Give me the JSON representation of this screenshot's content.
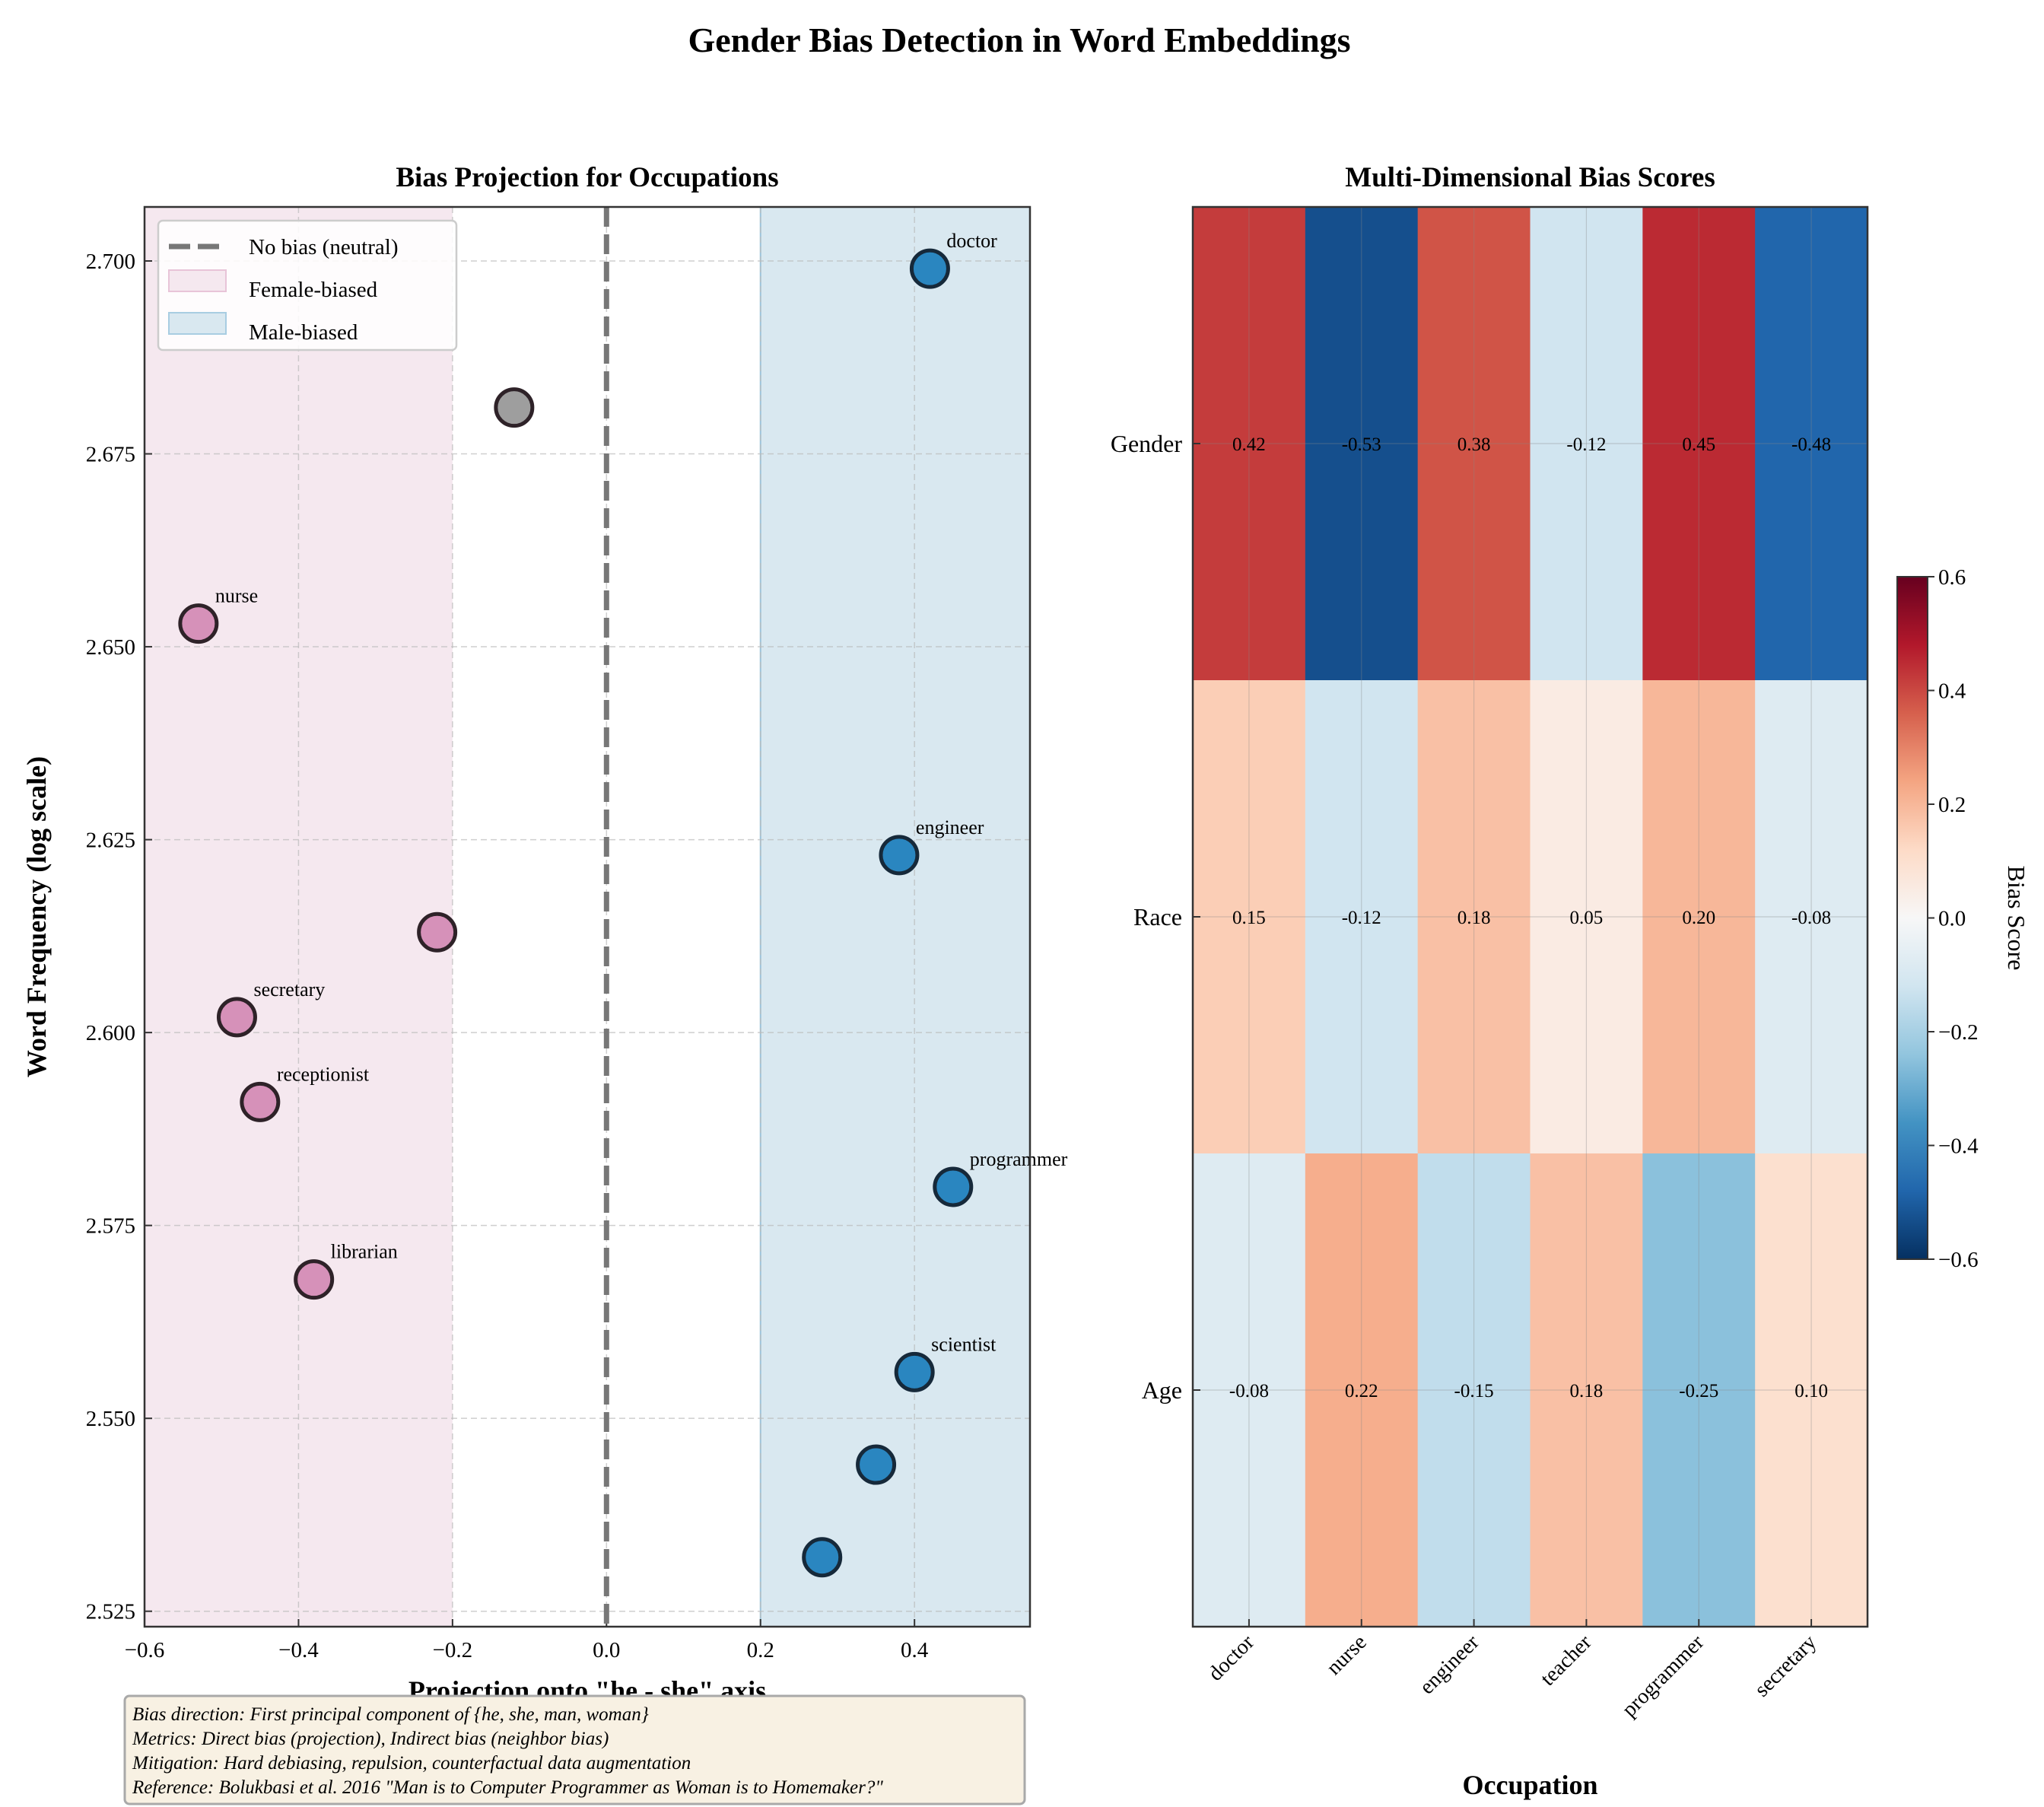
{
  "title": "Gender Bias Detection in Word Embeddings",
  "chart_data": [
    {
      "type": "scatter",
      "title": "Bias Projection for Occupations",
      "xlabel": "Projection onto \"he - she\" axis",
      "ylabel": "Word Frequency (log scale)",
      "xlim": [
        -0.6,
        0.55
      ],
      "ylim": [
        2.523,
        2.707
      ],
      "xticks": [
        "−0.6",
        "−0.4",
        "−0.2",
        "0.0",
        "0.2",
        "0.4"
      ],
      "xtick_values": [
        -0.6,
        -0.4,
        -0.2,
        0.0,
        0.2,
        0.4
      ],
      "yticks": [
        "2.525",
        "2.550",
        "2.575",
        "2.600",
        "2.625",
        "2.650",
        "2.675",
        "2.700"
      ],
      "ytick_values": [
        2.525,
        2.55,
        2.575,
        2.6,
        2.625,
        2.65,
        2.675,
        2.7
      ],
      "grid": true,
      "legend_position": "top-left",
      "legend": [
        "No bias (neutral)",
        "Female-biased",
        "Male-biased"
      ],
      "neutral_line_x": 0.0,
      "female_region": [
        -0.6,
        -0.2
      ],
      "male_region": [
        0.2,
        0.55
      ],
      "colors": {
        "female": "#d48cb5",
        "male": "#2a86c0",
        "neutral": "#999999",
        "female_region": "#f5e8ef",
        "male_region": "#d9e8f0"
      },
      "points": [
        {
          "label": "doctor",
          "x": 0.42,
          "y": 2.699,
          "group": "male"
        },
        {
          "label": "",
          "x": -0.12,
          "y": 2.681,
          "group": "neutral"
        },
        {
          "label": "nurse",
          "x": -0.53,
          "y": 2.653,
          "group": "female"
        },
        {
          "label": "engineer",
          "x": 0.38,
          "y": 2.623,
          "group": "male"
        },
        {
          "label": "",
          "x": -0.22,
          "y": 2.613,
          "group": "female"
        },
        {
          "label": "secretary",
          "x": -0.48,
          "y": 2.602,
          "group": "female"
        },
        {
          "label": "receptionist",
          "x": -0.45,
          "y": 2.591,
          "group": "female"
        },
        {
          "label": "programmer",
          "x": 0.45,
          "y": 2.58,
          "group": "male"
        },
        {
          "label": "librarian",
          "x": -0.38,
          "y": 2.568,
          "group": "female"
        },
        {
          "label": "scientist",
          "x": 0.4,
          "y": 2.556,
          "group": "male"
        },
        {
          "label": "",
          "x": 0.35,
          "y": 2.544,
          "group": "male"
        },
        {
          "label": "",
          "x": 0.28,
          "y": 2.532,
          "group": "male"
        }
      ]
    },
    {
      "type": "heatmap",
      "title": "Multi-Dimensional Bias Scores",
      "xlabel": "Occupation",
      "ylabel": "",
      "columns": [
        "doctor",
        "nurse",
        "engineer",
        "teacher",
        "programmer",
        "secretary"
      ],
      "rows": [
        "Gender",
        "Race",
        "Age"
      ],
      "values": [
        [
          0.42,
          -0.53,
          0.38,
          -0.12,
          0.45,
          -0.48
        ],
        [
          0.15,
          -0.12,
          0.18,
          0.05,
          0.2,
          -0.08
        ],
        [
          -0.08,
          0.22,
          -0.15,
          0.18,
          -0.25,
          0.1
        ]
      ],
      "value_labels": [
        [
          "0.42",
          "-0.53",
          "0.38",
          "-0.12",
          "0.45",
          "-0.48"
        ],
        [
          "0.15",
          "-0.12",
          "0.18",
          "0.05",
          "0.20",
          "-0.08"
        ],
        [
          "-0.08",
          "0.22",
          "-0.15",
          "0.18",
          "-0.25",
          "0.10"
        ]
      ],
      "colormap": "RdBu_r",
      "vmin": -0.6,
      "vmax": 0.6,
      "colorbar_label": "Bias Score",
      "colorbar_ticks": [
        "0.6",
        "0.4",
        "0.2",
        "0.0",
        "−0.2",
        "−0.4",
        "−0.6"
      ],
      "colorbar_tick_values": [
        0.6,
        0.4,
        0.2,
        0.0,
        -0.2,
        -0.4,
        -0.6
      ]
    }
  ],
  "notes": [
    "Bias direction: First principal component of {he, she, man, woman}",
    "Metrics: Direct bias (projection), Indirect bias (neighbor bias)",
    "Mitigation: Hard debiasing, repulsion, counterfactual data augmentation",
    "Reference: Bolukbasi et al. 2016 \"Man is to Computer Programmer as Woman is to Homemaker?\""
  ]
}
